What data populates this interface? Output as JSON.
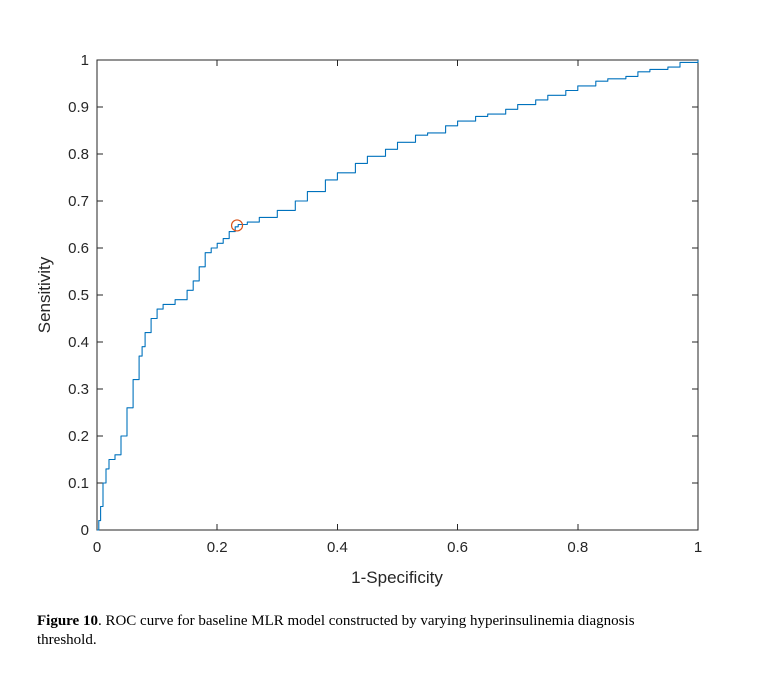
{
  "chart_data": {
    "type": "line",
    "title": "",
    "xlabel": "1-Specificity",
    "ylabel": "Sensitivity",
    "xlim": [
      0,
      1
    ],
    "ylim": [
      0,
      1
    ],
    "xticks": [
      "0",
      "0.2",
      "0.4",
      "0.6",
      "0.8",
      "1"
    ],
    "yticks": [
      "0",
      "0.1",
      "0.2",
      "0.3",
      "0.4",
      "0.5",
      "0.6",
      "0.7",
      "0.8",
      "0.9",
      "1"
    ],
    "grid": false,
    "legend": "none",
    "series": [
      {
        "color": "#0072BD",
        "x": [
          0,
          0.003,
          0.006,
          0.01,
          0.015,
          0.02,
          0.03,
          0.04,
          0.05,
          0.06,
          0.07,
          0.075,
          0.08,
          0.09,
          0.1,
          0.11,
          0.13,
          0.15,
          0.16,
          0.17,
          0.18,
          0.19,
          0.2,
          0.21,
          0.22,
          0.23,
          0.235,
          0.25,
          0.27,
          0.3,
          0.33,
          0.35,
          0.38,
          0.4,
          0.43,
          0.45,
          0.48,
          0.5,
          0.53,
          0.55,
          0.58,
          0.6,
          0.63,
          0.65,
          0.68,
          0.7,
          0.73,
          0.75,
          0.78,
          0.8,
          0.83,
          0.85,
          0.88,
          0.9,
          0.92,
          0.95,
          0.97,
          1.0
        ],
        "y": [
          0,
          0.02,
          0.05,
          0.1,
          0.13,
          0.15,
          0.16,
          0.2,
          0.26,
          0.32,
          0.37,
          0.39,
          0.42,
          0.45,
          0.47,
          0.48,
          0.49,
          0.51,
          0.53,
          0.56,
          0.59,
          0.6,
          0.61,
          0.62,
          0.635,
          0.645,
          0.65,
          0.655,
          0.665,
          0.68,
          0.7,
          0.72,
          0.745,
          0.76,
          0.78,
          0.795,
          0.81,
          0.825,
          0.84,
          0.845,
          0.86,
          0.87,
          0.88,
          0.885,
          0.895,
          0.905,
          0.915,
          0.925,
          0.935,
          0.945,
          0.955,
          0.96,
          0.965,
          0.975,
          0.98,
          0.985,
          0.995,
          1.0
        ]
      }
    ],
    "marker": {
      "x": 0.233,
      "y": 0.648,
      "shape": "circle",
      "color": "#D95319"
    }
  },
  "caption": {
    "label": "Figure 10",
    "text": ". ROC curve for baseline MLR model constructed by varying hyperinsulinemia diagnosis threshold."
  }
}
